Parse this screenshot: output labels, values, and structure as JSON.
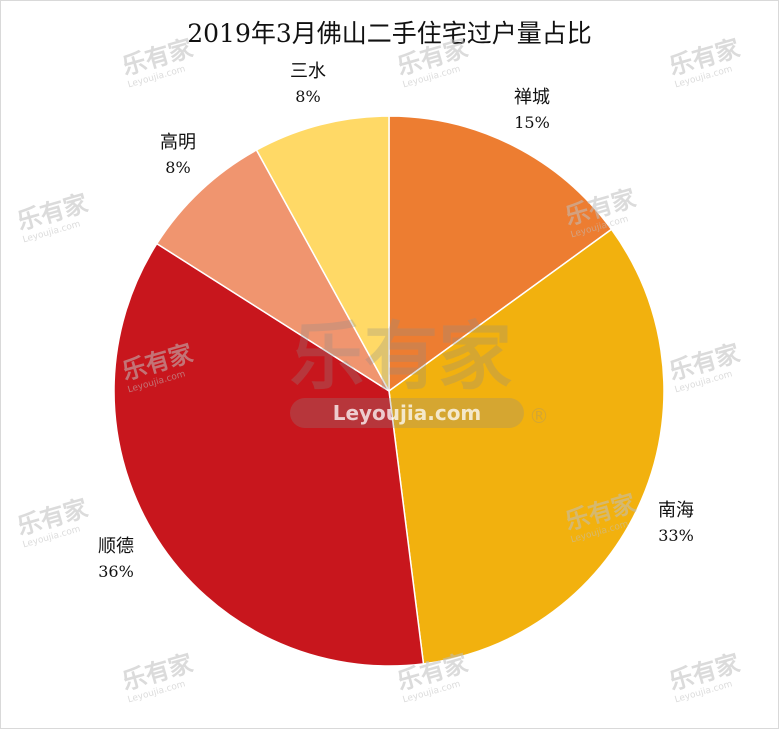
{
  "chart_data": {
    "type": "pie",
    "title": "2019年3月佛山二手住宅过户量占比",
    "slices": [
      {
        "name": "禅城",
        "value": 15,
        "label": "15%",
        "color": "#ED7D31"
      },
      {
        "name": "南海",
        "value": 33,
        "label": "33%",
        "color": "#F2B10E"
      },
      {
        "name": "顺德",
        "value": 36,
        "label": "36%",
        "color": "#C8161D"
      },
      {
        "name": "高明",
        "value": 8,
        "label": "8%",
        "color": "#F0956F"
      },
      {
        "name": "三水",
        "value": 8,
        "label": "8%",
        "color": "#FFD966"
      }
    ],
    "start_angle_deg": 0,
    "direction": "clockwise",
    "legend": "none"
  },
  "watermark": {
    "brand": "乐有家",
    "url": "Leyoujia.com",
    "registered_mark": "®"
  }
}
